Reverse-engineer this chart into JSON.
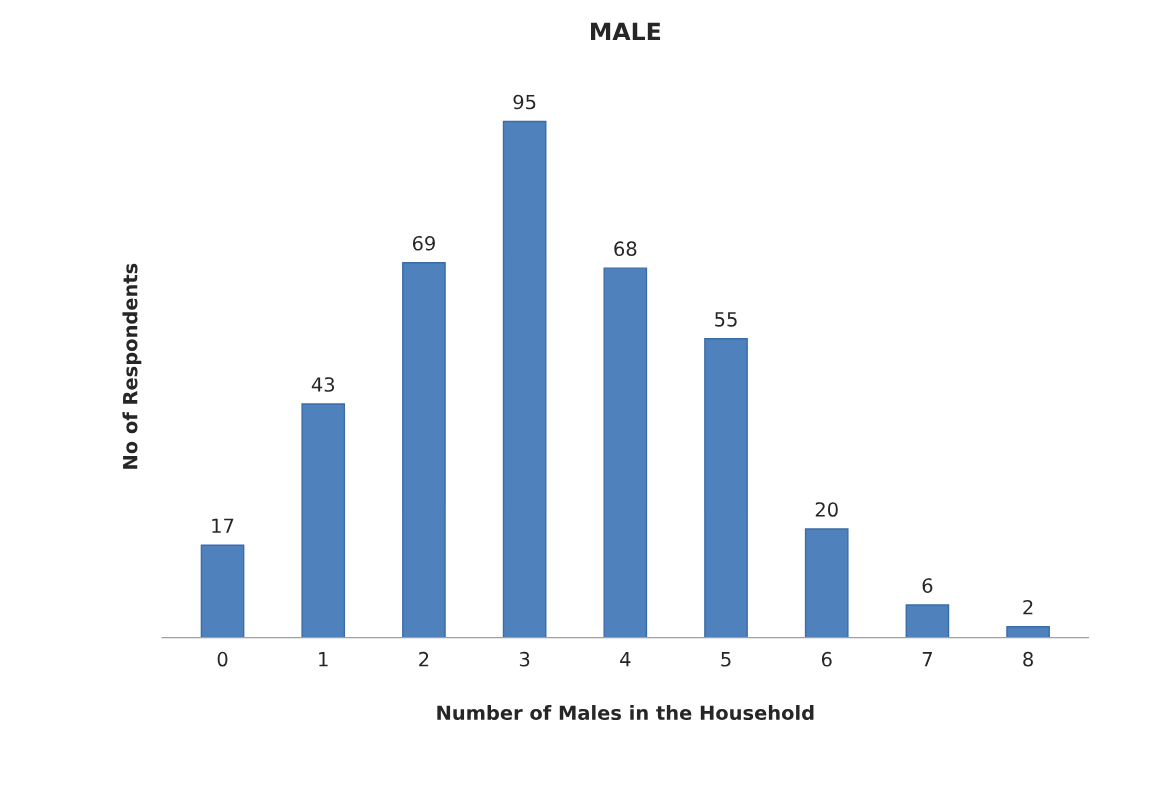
{
  "chart_data": {
    "type": "bar",
    "title": "MALE",
    "xlabel": "Number of Males in the Household",
    "ylabel": "No of Respondents",
    "categories": [
      "0",
      "1",
      "2",
      "3",
      "4",
      "5",
      "6",
      "7",
      "8"
    ],
    "values": [
      17,
      43,
      69,
      95,
      68,
      55,
      20,
      6,
      2
    ],
    "color": "#4f81bd",
    "data_labels": true,
    "grid": false,
    "legend": false
  }
}
